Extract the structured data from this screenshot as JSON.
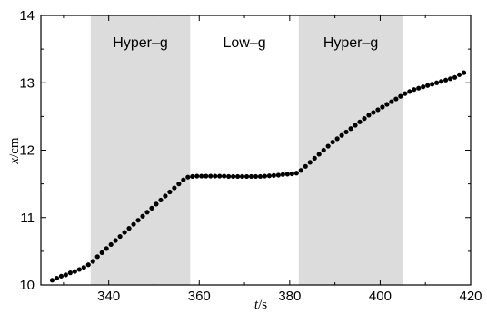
{
  "chart_data": {
    "type": "scatter",
    "xlabel_var": "t",
    "xlabel_unit": "/s",
    "ylabel_var": "x",
    "ylabel_unit": "/cm",
    "xlim": [
      325,
      420
    ],
    "ylim": [
      10,
      14
    ],
    "x_ticks": [
      340,
      360,
      380,
      400,
      420
    ],
    "y_ticks": [
      10,
      11,
      12,
      13,
      14
    ],
    "grid": false,
    "regions": [
      {
        "label": "Hyper–g",
        "x_start": 336,
        "x_end": 358,
        "shaded": true,
        "color": "#dcdcdc"
      },
      {
        "label": "Low–g",
        "x_start": 358,
        "x_end": 382,
        "shaded": false
      },
      {
        "label": "Hyper–g",
        "x_start": 382,
        "x_end": 405,
        "shaded": true,
        "color": "#dcdcdc"
      }
    ],
    "marker_color": "#000000",
    "series": [
      {
        "points": [
          [
            327.5,
            10.07
          ],
          [
            328.5,
            10.1
          ],
          [
            329.5,
            10.13
          ],
          [
            330.5,
            10.15
          ],
          [
            331.5,
            10.18
          ],
          [
            332.5,
            10.2
          ],
          [
            333.5,
            10.23
          ],
          [
            334.5,
            10.26
          ],
          [
            335.5,
            10.3
          ],
          [
            336.5,
            10.35
          ],
          [
            337.5,
            10.42
          ],
          [
            338.5,
            10.48
          ],
          [
            339.5,
            10.54
          ],
          [
            340.5,
            10.6
          ],
          [
            341.5,
            10.66
          ],
          [
            342.5,
            10.72
          ],
          [
            343.5,
            10.78
          ],
          [
            344.5,
            10.84
          ],
          [
            345.5,
            10.9
          ],
          [
            346.5,
            10.96
          ],
          [
            347.5,
            11.02
          ],
          [
            348.5,
            11.08
          ],
          [
            349.5,
            11.14
          ],
          [
            350.5,
            11.2
          ],
          [
            351.5,
            11.26
          ],
          [
            352.5,
            11.32
          ],
          [
            353.5,
            11.38
          ],
          [
            354.5,
            11.44
          ],
          [
            355.5,
            11.5
          ],
          [
            356.5,
            11.56
          ],
          [
            357.5,
            11.6
          ],
          [
            358.5,
            11.61
          ],
          [
            359.5,
            11.615
          ],
          [
            360.5,
            11.615
          ],
          [
            361.5,
            11.615
          ],
          [
            362.5,
            11.615
          ],
          [
            363.5,
            11.615
          ],
          [
            364.5,
            11.615
          ],
          [
            365.5,
            11.615
          ],
          [
            366.5,
            11.61
          ],
          [
            367.5,
            11.61
          ],
          [
            368.5,
            11.61
          ],
          [
            369.5,
            11.61
          ],
          [
            370.5,
            11.61
          ],
          [
            371.5,
            11.61
          ],
          [
            372.5,
            11.61
          ],
          [
            373.5,
            11.61
          ],
          [
            374.5,
            11.615
          ],
          [
            375.5,
            11.62
          ],
          [
            376.5,
            11.625
          ],
          [
            377.5,
            11.63
          ],
          [
            378.5,
            11.64
          ],
          [
            379.5,
            11.645
          ],
          [
            380.5,
            11.65
          ],
          [
            381.5,
            11.66
          ],
          [
            382.5,
            11.7
          ],
          [
            383.5,
            11.76
          ],
          [
            384.5,
            11.82
          ],
          [
            385.5,
            11.88
          ],
          [
            386.5,
            11.94
          ],
          [
            387.5,
            12.0
          ],
          [
            388.5,
            12.06
          ],
          [
            389.5,
            12.12
          ],
          [
            390.5,
            12.17
          ],
          [
            391.5,
            12.22
          ],
          [
            392.5,
            12.27
          ],
          [
            393.5,
            12.32
          ],
          [
            394.5,
            12.37
          ],
          [
            395.5,
            12.42
          ],
          [
            396.5,
            12.47
          ],
          [
            397.5,
            12.52
          ],
          [
            398.5,
            12.56
          ],
          [
            399.5,
            12.6
          ],
          [
            400.5,
            12.64
          ],
          [
            401.5,
            12.68
          ],
          [
            402.5,
            12.72
          ],
          [
            403.5,
            12.76
          ],
          [
            404.5,
            12.8
          ],
          [
            405.5,
            12.84
          ],
          [
            406.5,
            12.87
          ],
          [
            407.5,
            12.9
          ],
          [
            408.5,
            12.92
          ],
          [
            409.5,
            12.94
          ],
          [
            410.5,
            12.96
          ],
          [
            411.5,
            12.98
          ],
          [
            412.5,
            13.0
          ],
          [
            413.5,
            13.02
          ],
          [
            414.5,
            13.04
          ],
          [
            415.5,
            13.06
          ],
          [
            416.5,
            13.08
          ],
          [
            417.5,
            13.12
          ],
          [
            418.5,
            13.15
          ]
        ]
      }
    ]
  }
}
